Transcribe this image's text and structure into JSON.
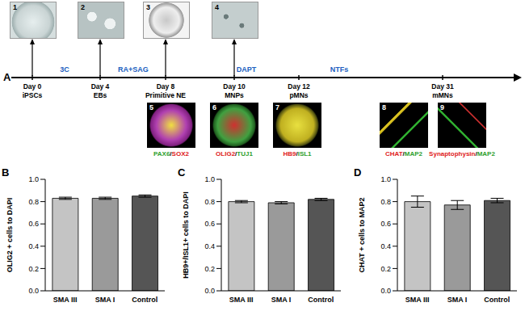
{
  "timeline": {
    "panel": "A",
    "treatments": [
      "3C",
      "RA+SAG",
      "DAPT",
      "NTFs"
    ],
    "stages": [
      {
        "day": "Day 0",
        "name": "iPSCs"
      },
      {
        "day": "Day 4",
        "name": "EBs"
      },
      {
        "day": "Day 8",
        "name": "Primitive NE"
      },
      {
        "day": "Day 10",
        "name": "MNPs"
      },
      {
        "day": "Day 12",
        "name": "pMNs"
      },
      {
        "day": "Day 31",
        "name": "mMNs"
      }
    ],
    "top_images": [
      "1",
      "2",
      "3",
      "4"
    ],
    "stain_images": [
      {
        "id": "5",
        "label": "PAX6/SOX2",
        "colors": [
          "#2ea02e",
          "#e02020"
        ]
      },
      {
        "id": "6",
        "label": "OLIG2/TUJ1",
        "colors": [
          "#e02020",
          "#2ea02e"
        ]
      },
      {
        "id": "7",
        "label": "HB9/ISL1",
        "colors": [
          "#e02020",
          "#2ea02e"
        ]
      },
      {
        "id": "8",
        "label": "CHAT/MAP2",
        "colors": [
          "#e02020",
          "#2ea02e"
        ]
      },
      {
        "id": "9",
        "label": "Synaptophysin/MAP2",
        "colors": [
          "#e02020",
          "#2ea02e"
        ]
      }
    ]
  },
  "chart_data": [
    {
      "type": "bar",
      "panel": "B",
      "y_label": "OLIG2 + cells to DAPI",
      "categories": [
        "SMA III",
        "SMA I",
        "Control"
      ],
      "values": [
        0.83,
        0.83,
        0.85
      ],
      "errors": [
        0.01,
        0.01,
        0.01
      ],
      "colors": [
        "#c4c4c4",
        "#9a9a9a",
        "#555555"
      ],
      "ylim": [
        0,
        1
      ],
      "yticks": [
        {
          "value": 0,
          "label": "0.0"
        },
        0.2,
        0.4,
        0.6,
        0.8,
        {
          "value": 1,
          "label": "1.0"
        }
      ]
    },
    {
      "type": "bar",
      "panel": "C",
      "y_label": "HB9+/ISL1+ cells to DAPI",
      "categories": [
        "SMA III",
        "SMA I",
        "Control"
      ],
      "values": [
        0.8,
        0.79,
        0.82
      ],
      "errors": [
        0.01,
        0.01,
        0.01
      ],
      "colors": [
        "#c4c4c4",
        "#9a9a9a",
        "#555555"
      ],
      "ylim": [
        0,
        1
      ],
      "yticks": [
        {
          "value": 0,
          "label": "0.0"
        },
        0.2,
        0.4,
        0.6,
        0.8,
        {
          "value": 1,
          "label": "1.0"
        }
      ]
    },
    {
      "type": "bar",
      "panel": "D",
      "y_label": "CHAT + cells to MAP2",
      "categories": [
        "SMA III",
        "SMA I",
        "Control"
      ],
      "values": [
        0.8,
        0.77,
        0.81
      ],
      "errors": [
        0.05,
        0.04,
        0.02
      ],
      "colors": [
        "#c4c4c4",
        "#9a9a9a",
        "#555555"
      ],
      "ylim": [
        0,
        1
      ],
      "yticks": [
        {
          "value": 0,
          "label": "0.0"
        },
        0.2,
        0.4,
        0.6,
        0.8,
        {
          "value": 1,
          "label": "1.0"
        }
      ]
    }
  ]
}
